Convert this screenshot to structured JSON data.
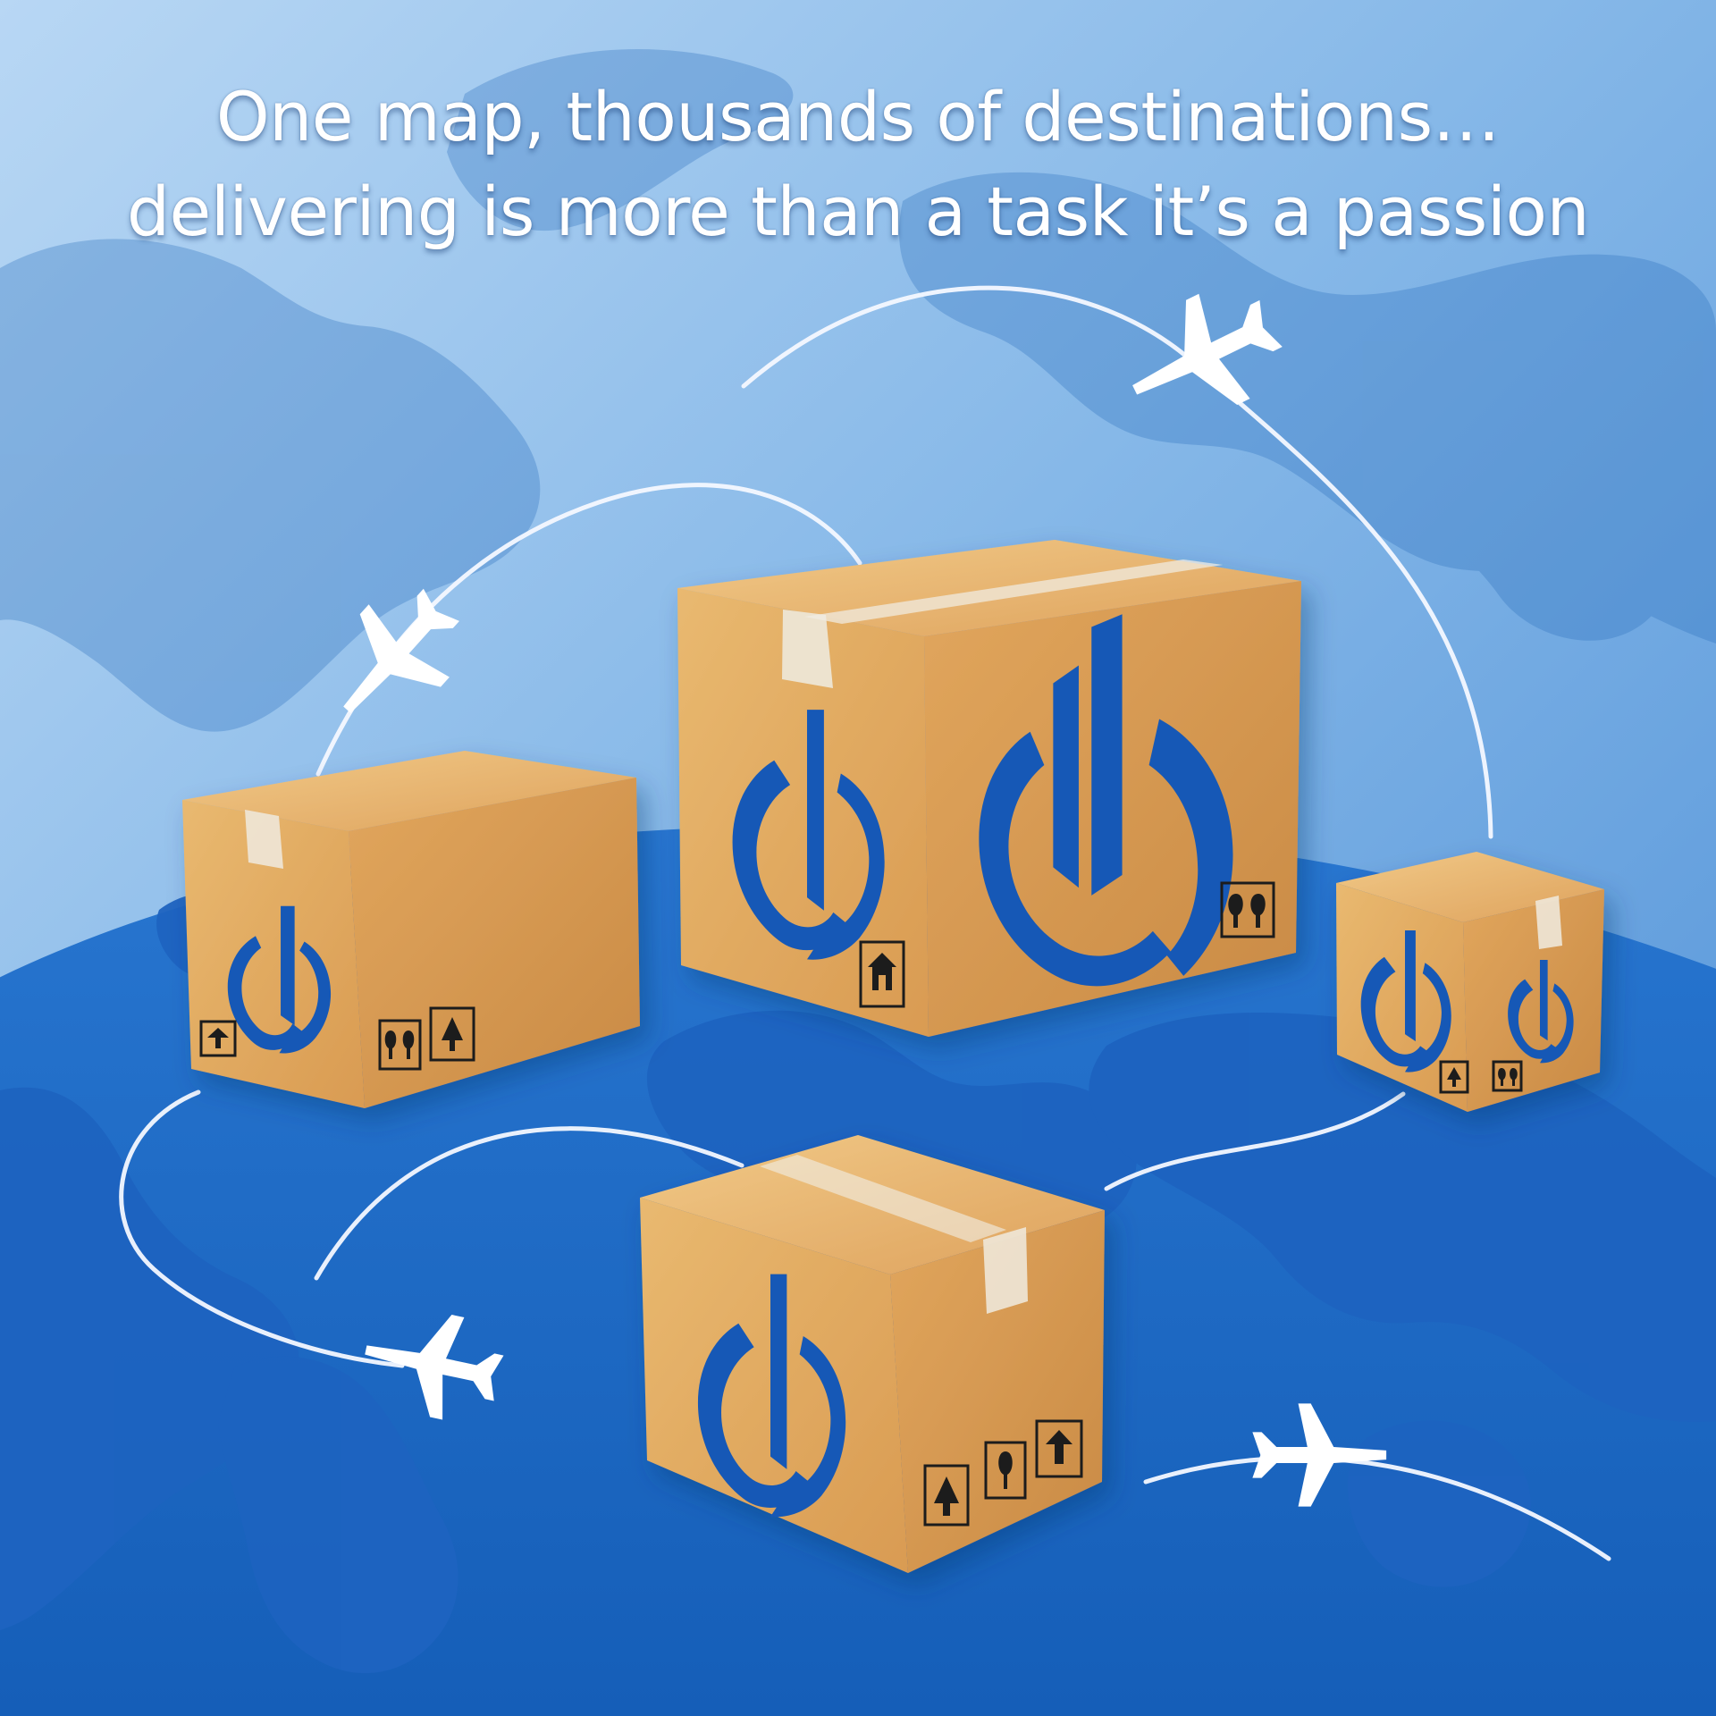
{
  "headline": {
    "line1": "One map, thousands of destinations…",
    "line2": "delivering is more than a task it’s a passion"
  },
  "colors": {
    "sky_blue": "#a9cdf0",
    "map_blue": "#2b6fc6",
    "continent_blue": "#1d63c0",
    "box_tan": "#e3ad62",
    "box_shadow": "#c98c45",
    "logo_blue": "#1659b6",
    "route_white": "#f4f8ff"
  },
  "icons": [
    "airplane-icon",
    "company-logo",
    "this-way-up-icon",
    "fragile-icon",
    "keep-dry-icon",
    "home-delivery-icon"
  ]
}
